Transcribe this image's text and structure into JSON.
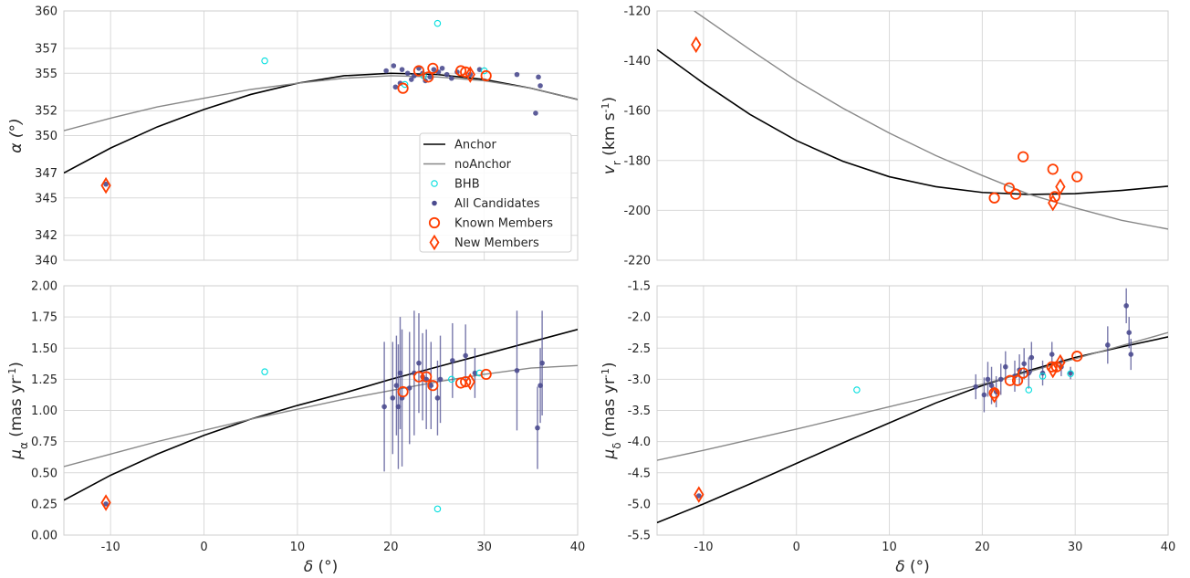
{
  "colors": {
    "anchor": "#000000",
    "noanchor": "#888888",
    "bhb": "#00dede",
    "candidates": "#4b4b8f",
    "members": "#ff3d00",
    "grid": "#d9d9d9",
    "frame": "#cfcfcf"
  },
  "legend": {
    "placement": "inside top-left panel, right side",
    "items": [
      "Anchor",
      "noAnchor",
      "BHB",
      "All Candidates",
      "Known Members",
      "New Members"
    ]
  },
  "chart_data": [
    {
      "type": "scatter",
      "panel": "top-left",
      "xlabel": "",
      "ylabel": "α (°)",
      "xlim": [
        -15,
        40
      ],
      "ylim": [
        340,
        360
      ],
      "xticks": [
        "-10",
        "0",
        "10",
        "20",
        "30",
        "40"
      ],
      "yticks": [
        "340",
        "342",
        "345",
        "347",
        "350",
        "352",
        "355",
        "357",
        "360"
      ],
      "show_xticklabels": false,
      "grid": true,
      "series": [
        {
          "name": "Anchor",
          "kind": "line",
          "color_key": "anchor",
          "x": [
            -15,
            -10,
            -5,
            0,
            5,
            10,
            15,
            20,
            25,
            30,
            35,
            40
          ],
          "y": [
            347.0,
            349.0,
            350.7,
            352.1,
            353.3,
            354.2,
            354.8,
            355.0,
            354.9,
            354.5,
            353.8,
            352.9
          ]
        },
        {
          "name": "noAnchor",
          "kind": "line",
          "color_key": "noanchor",
          "x": [
            -15,
            -10,
            -5,
            0,
            5,
            10,
            15,
            20,
            25,
            30,
            35,
            40
          ],
          "y": [
            350.4,
            351.4,
            352.3,
            353.0,
            353.7,
            354.2,
            354.6,
            354.8,
            354.7,
            354.4,
            353.8,
            352.9
          ]
        },
        {
          "name": "BHB",
          "kind": "open_circle",
          "color_key": "bhb",
          "points": [
            [
              6.5,
              356.0
            ],
            [
              25.0,
              359.0
            ],
            [
              30.0,
              355.2
            ],
            [
              23.5,
              354.8
            ],
            [
              21.5,
              354.1
            ]
          ]
        },
        {
          "name": "All Candidates",
          "kind": "dot",
          "color_key": "candidates",
          "points": [
            [
              -10.5,
              346.1
            ],
            [
              19.5,
              355.2
            ],
            [
              20.3,
              355.6
            ],
            [
              20.5,
              353.9
            ],
            [
              21.0,
              354.2
            ],
            [
              21.2,
              355.3
            ],
            [
              21.8,
              355.0
            ],
            [
              22.2,
              354.5
            ],
            [
              22.5,
              354.8
            ],
            [
              23.0,
              355.4
            ],
            [
              23.4,
              355.0
            ],
            [
              23.7,
              354.4
            ],
            [
              24.2,
              354.7
            ],
            [
              24.6,
              355.3
            ],
            [
              25.1,
              355.1
            ],
            [
              25.5,
              355.4
            ],
            [
              26.0,
              354.9
            ],
            [
              26.5,
              354.6
            ],
            [
              27.1,
              355.1
            ],
            [
              28.5,
              354.9
            ],
            [
              29.5,
              355.3
            ],
            [
              33.5,
              354.9
            ],
            [
              35.5,
              351.8
            ],
            [
              35.8,
              354.7
            ],
            [
              36.0,
              354.0
            ]
          ]
        },
        {
          "name": "Known Members",
          "kind": "open_circle_large",
          "color_key": "members",
          "points": [
            [
              21.3,
              353.8
            ],
            [
              23.0,
              355.2
            ],
            [
              24.0,
              354.7
            ],
            [
              24.5,
              355.4
            ],
            [
              27.5,
              355.2
            ],
            [
              28.0,
              355.1
            ],
            [
              30.2,
              354.8
            ]
          ]
        },
        {
          "name": "New Members",
          "kind": "diamond",
          "color_key": "members",
          "points": [
            [
              -10.5,
              346.0
            ],
            [
              28.5,
              354.9
            ]
          ]
        }
      ]
    },
    {
      "type": "scatter",
      "panel": "top-right",
      "xlabel": "",
      "ylabel": "v_r (km s^-1)",
      "xlim": [
        -15,
        40
      ],
      "ylim": [
        -220,
        -120
      ],
      "xticks": [
        "-10",
        "0",
        "10",
        "20",
        "30",
        "40"
      ],
      "yticks": [
        "-220",
        "-200",
        "-180",
        "-160",
        "-140",
        "-120"
      ],
      "show_xticklabels": false,
      "grid": true,
      "series": [
        {
          "name": "Anchor",
          "kind": "line",
          "color_key": "anchor",
          "x": [
            -15,
            -10,
            -5,
            0,
            5,
            10,
            15,
            20,
            25,
            30,
            35,
            40
          ],
          "y": [
            -135.5,
            -149.0,
            -161.5,
            -172.0,
            -180.3,
            -186.5,
            -190.5,
            -192.8,
            -193.6,
            -193.3,
            -192.0,
            -190.3
          ]
        },
        {
          "name": "noAnchor",
          "kind": "line",
          "color_key": "noanchor",
          "x": [
            -11,
            -5,
            0,
            5,
            10,
            15,
            20,
            25,
            30,
            35,
            40
          ],
          "y": [
            -120.0,
            -135.5,
            -148.0,
            -159.0,
            -169.0,
            -178.0,
            -186.0,
            -193.5,
            -199.0,
            -204.0,
            -207.5
          ]
        },
        {
          "name": "Known Members",
          "kind": "open_circle_large",
          "color_key": "members",
          "points": [
            [
              21.3,
              -195.0
            ],
            [
              22.9,
              -191.0
            ],
            [
              23.6,
              -193.5
            ],
            [
              24.4,
              -178.5
            ],
            [
              27.6,
              -183.5
            ],
            [
              27.8,
              -194.5
            ],
            [
              30.2,
              -186.5
            ]
          ]
        },
        {
          "name": "New Members",
          "kind": "diamond",
          "color_key": "members",
          "points": [
            [
              -10.8,
              -133.5
            ],
            [
              27.6,
              -197.0
            ],
            [
              28.4,
              -190.5
            ]
          ]
        }
      ]
    },
    {
      "type": "scatter",
      "panel": "bottom-left",
      "xlabel": "δ (°)",
      "ylabel": "μ_α (mas yr^-1)",
      "xlim": [
        -15,
        40
      ],
      "ylim": [
        0.0,
        2.0
      ],
      "xticks": [
        "-10",
        "0",
        "10",
        "20",
        "30",
        "40"
      ],
      "yticks": [
        "0.00",
        "0.25",
        "0.50",
        "0.75",
        "1.00",
        "1.25",
        "1.50",
        "1.75",
        "2.00"
      ],
      "show_xticklabels": true,
      "grid": true,
      "series": [
        {
          "name": "Anchor",
          "kind": "line",
          "color_key": "anchor",
          "x": [
            -15,
            -10,
            -5,
            0,
            5,
            10,
            15,
            20,
            25,
            30,
            35,
            40
          ],
          "y": [
            0.28,
            0.48,
            0.65,
            0.8,
            0.93,
            1.04,
            1.14,
            1.25,
            1.35,
            1.45,
            1.55,
            1.65
          ]
        },
        {
          "name": "noAnchor",
          "kind": "line",
          "color_key": "noanchor",
          "x": [
            -15,
            -10,
            -5,
            0,
            5,
            10,
            15,
            20,
            25,
            30,
            35,
            40
          ],
          "y": [
            0.55,
            0.65,
            0.75,
            0.84,
            0.93,
            1.01,
            1.09,
            1.16,
            1.23,
            1.29,
            1.34,
            1.36
          ]
        },
        {
          "name": "BHB",
          "kind": "open_circle",
          "color_key": "bhb",
          "points": [
            [
              6.5,
              1.31
            ],
            [
              25.0,
              0.21
            ],
            [
              26.5,
              1.25
            ],
            [
              29.5,
              1.3
            ]
          ]
        },
        {
          "name": "All Candidates",
          "kind": "dot_err",
          "color_key": "candidates",
          "points": [
            [
              -10.5,
              0.25,
              0.03
            ],
            [
              19.3,
              1.03,
              0.52
            ],
            [
              20.2,
              1.1,
              0.45
            ],
            [
              20.6,
              1.2,
              0.4
            ],
            [
              20.8,
              1.03,
              0.5
            ],
            [
              21.0,
              1.3,
              0.45
            ],
            [
              21.2,
              1.1,
              0.55
            ],
            [
              22.0,
              1.18,
              0.45
            ],
            [
              22.5,
              1.3,
              0.5
            ],
            [
              23.0,
              1.38,
              0.4
            ],
            [
              23.4,
              1.27,
              0.35
            ],
            [
              23.8,
              1.25,
              0.4
            ],
            [
              24.3,
              1.2,
              0.35
            ],
            [
              25.0,
              1.1,
              0.3
            ],
            [
              25.3,
              1.25,
              0.35
            ],
            [
              26.6,
              1.4,
              0.3
            ],
            [
              28.0,
              1.44,
              0.25
            ],
            [
              29.0,
              1.3,
              0.2
            ],
            [
              33.5,
              1.32,
              0.48
            ],
            [
              35.7,
              0.86,
              0.33
            ],
            [
              36.0,
              1.2,
              0.3
            ],
            [
              36.2,
              1.38,
              0.42
            ]
          ]
        },
        {
          "name": "Known Members",
          "kind": "open_circle_large",
          "color_key": "members",
          "points": [
            [
              21.3,
              1.15
            ],
            [
              23.0,
              1.27
            ],
            [
              23.8,
              1.27
            ],
            [
              24.5,
              1.2
            ],
            [
              27.5,
              1.22
            ],
            [
              28.0,
              1.23
            ],
            [
              30.2,
              1.29
            ]
          ]
        },
        {
          "name": "New Members",
          "kind": "diamond",
          "color_key": "members",
          "points": [
            [
              -10.5,
              0.26
            ],
            [
              28.5,
              1.23
            ]
          ]
        }
      ]
    },
    {
      "type": "scatter",
      "panel": "bottom-right",
      "xlabel": "δ (°)",
      "ylabel": "μ_δ (mas yr^-1)",
      "xlim": [
        -15,
        40
      ],
      "ylim": [
        -5.5,
        -1.5
      ],
      "xticks": [
        "-10",
        "0",
        "10",
        "20",
        "30",
        "40"
      ],
      "yticks": [
        "-5.5",
        "-5.0",
        "-4.5",
        "-4.0",
        "-3.5",
        "-3.0",
        "-2.5",
        "-2.0",
        "-1.5"
      ],
      "show_xticklabels": true,
      "grid": true,
      "series": [
        {
          "name": "Anchor",
          "kind": "line",
          "color_key": "anchor",
          "x": [
            -15,
            -10,
            -5,
            0,
            5,
            10,
            15,
            20,
            25,
            30,
            35,
            40
          ],
          "y": [
            -5.3,
            -5.0,
            -4.68,
            -4.35,
            -4.02,
            -3.7,
            -3.38,
            -3.1,
            -2.86,
            -2.65,
            -2.48,
            -2.32
          ]
        },
        {
          "name": "noAnchor",
          "kind": "line",
          "color_key": "noanchor",
          "x": [
            -15,
            -10,
            -5,
            0,
            5,
            10,
            15,
            20,
            25,
            30,
            35,
            40
          ],
          "y": [
            -4.3,
            -4.14,
            -3.97,
            -3.8,
            -3.62,
            -3.44,
            -3.26,
            -3.08,
            -2.88,
            -2.67,
            -2.46,
            -2.25
          ]
        },
        {
          "name": "BHB",
          "kind": "open_circle",
          "color_key": "bhb",
          "points": [
            [
              6.5,
              -3.17
            ],
            [
              25.0,
              -3.17
            ],
            [
              29.5,
              -2.91
            ],
            [
              26.5,
              -2.95
            ]
          ]
        },
        {
          "name": "All Candidates",
          "kind": "dot_err",
          "color_key": "candidates",
          "points": [
            [
              -10.5,
              -4.87,
              0.05
            ],
            [
              19.3,
              -3.12,
              0.2
            ],
            [
              20.2,
              -3.25,
              0.28
            ],
            [
              20.6,
              -3.0,
              0.28
            ],
            [
              21.0,
              -3.1,
              0.3
            ],
            [
              21.5,
              -3.2,
              0.25
            ],
            [
              22.0,
              -3.0,
              0.25
            ],
            [
              22.5,
              -2.8,
              0.25
            ],
            [
              23.5,
              -2.95,
              0.25
            ],
            [
              24.0,
              -2.85,
              0.25
            ],
            [
              24.5,
              -2.75,
              0.25
            ],
            [
              25.0,
              -2.9,
              0.25
            ],
            [
              25.3,
              -2.65,
              0.25
            ],
            [
              26.5,
              -2.9,
              0.2
            ],
            [
              27.5,
              -2.6,
              0.2
            ],
            [
              28.5,
              -2.8,
              0.15
            ],
            [
              29.5,
              -2.9,
              0.1
            ],
            [
              33.5,
              -2.45,
              0.3
            ],
            [
              35.5,
              -1.82,
              0.28
            ],
            [
              35.8,
              -2.25,
              0.25
            ],
            [
              36.0,
              -2.6,
              0.25
            ]
          ]
        },
        {
          "name": "Known Members",
          "kind": "open_circle_large",
          "color_key": "members",
          "points": [
            [
              21.3,
              -3.22
            ],
            [
              23.0,
              -3.02
            ],
            [
              23.8,
              -3.02
            ],
            [
              24.4,
              -2.9
            ],
            [
              27.5,
              -2.8
            ],
            [
              28.0,
              -2.8
            ],
            [
              30.2,
              -2.63
            ]
          ]
        },
        {
          "name": "New Members",
          "kind": "diamond",
          "color_key": "members",
          "points": [
            [
              -10.5,
              -4.85
            ],
            [
              21.3,
              -3.25
            ],
            [
              27.6,
              -2.85
            ],
            [
              28.4,
              -2.73
            ]
          ]
        }
      ]
    }
  ]
}
